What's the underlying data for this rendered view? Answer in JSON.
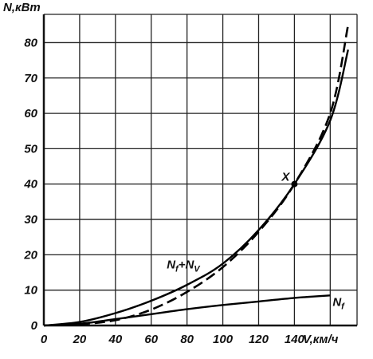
{
  "chart_data": {
    "type": "line",
    "ylabel": "N,кВт",
    "xlabel": "V,км/ч",
    "xlim": [
      0,
      175
    ],
    "ylim": [
      0,
      88
    ],
    "grid": true,
    "x_ticks": [
      "0",
      "20",
      "40",
      "60",
      "80",
      "100",
      "120",
      "140"
    ],
    "y_ticks": [
      "0",
      "10",
      "20",
      "30",
      "40",
      "50",
      "60",
      "70",
      "80"
    ],
    "series": [
      {
        "name": "N_f + N_V",
        "style": "solid",
        "x": [
          0,
          20,
          40,
          60,
          80,
          100,
          120,
          140,
          160,
          170
        ],
        "y": [
          0,
          1,
          3.5,
          7,
          11.5,
          17.5,
          27,
          40,
          58,
          78
        ]
      },
      {
        "style": "dashed",
        "x": [
          20,
          40,
          60,
          80,
          100,
          120,
          140,
          160,
          170
        ],
        "y": [
          0.3,
          1.5,
          4.5,
          9.5,
          16.5,
          26.5,
          40,
          60,
          85
        ]
      },
      {
        "name": "N_f",
        "style": "solid",
        "x": [
          0,
          20,
          40,
          60,
          80,
          100,
          120,
          140,
          160
        ],
        "y": [
          0,
          0.5,
          1.8,
          3.2,
          4.6,
          5.8,
          6.8,
          7.8,
          8.5
        ]
      }
    ],
    "annotations": [
      {
        "text": "X",
        "x": 140,
        "y": 40
      }
    ],
    "labels": {
      "sum": {
        "main": "N",
        "sub1": "f",
        "plus": "+N",
        "sub2": "V"
      },
      "nf": {
        "main": "N",
        "sub": "f"
      }
    }
  }
}
